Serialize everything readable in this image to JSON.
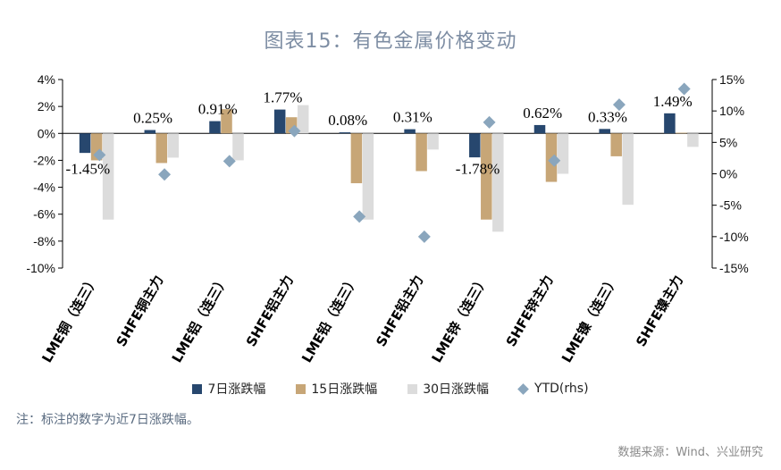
{
  "title": "图表15：有色金属价格变动",
  "note": "注：标注的数字为近7日涨跌幅。",
  "source": "数据来源：Wind、兴业研究",
  "colors": {
    "s7": "#27476e",
    "s15": "#c7a677",
    "s30": "#dcdcdc",
    "ytd": "#8aa6bd",
    "axis": "#000000"
  },
  "chart_data": {
    "type": "bar",
    "categories": [
      "LME铜（连三）",
      "SHFE铜主力",
      "LME铝（连三）",
      "SHFE铝主力",
      "LME铅（连三）",
      "SHFE铅主力",
      "LME锌（连三）",
      "SHFE锌主力",
      "LME镍（连三）",
      "SHFE镍主力"
    ],
    "series": [
      {
        "name": "7日涨跌幅",
        "values": [
          -1.45,
          0.25,
          0.91,
          1.77,
          0.08,
          0.31,
          -1.78,
          0.62,
          0.33,
          1.49
        ]
      },
      {
        "name": "15日涨跌幅",
        "values": [
          -2.0,
          -2.2,
          1.8,
          1.2,
          -3.7,
          -2.8,
          -6.4,
          -3.6,
          -1.7,
          0.05
        ]
      },
      {
        "name": "30日涨跌幅",
        "values": [
          -6.4,
          -1.8,
          -2.0,
          2.1,
          -6.4,
          -1.2,
          -7.3,
          -3.0,
          -5.3,
          -1.0
        ]
      },
      {
        "name": "YTD(rhs)",
        "values": [
          3.0,
          -0.1,
          2.0,
          6.8,
          -6.8,
          -10.0,
          8.2,
          2.1,
          11.0,
          13.5
        ],
        "axis": "right"
      }
    ],
    "data_labels": [
      "-1.45%",
      "0.25%",
      "0.91%",
      "1.77%",
      "0.08%",
      "0.31%",
      "-1.78%",
      "0.62%",
      "0.33%",
      "1.49%"
    ],
    "ylim": [
      -10,
      4
    ],
    "yticks": [
      "4%",
      "2%",
      "0%",
      "-2%",
      "-4%",
      "-6%",
      "-8%",
      "-10%"
    ],
    "y2lim": [
      -15,
      15
    ],
    "y2ticks": [
      "15%",
      "10%",
      "5%",
      "0%",
      "-5%",
      "-10%",
      "-15%"
    ],
    "legend_position": "bottom",
    "grid": false
  }
}
